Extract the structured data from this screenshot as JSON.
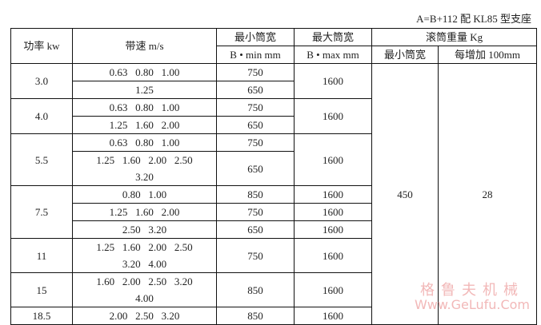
{
  "note": "A=B+112 配 KL85 型支座",
  "header": {
    "power": "功率 kw",
    "speed": "带速 m/s",
    "min_width": "最小筒宽",
    "min_width_unit": "B • min mm",
    "max_width": "最大筒宽",
    "max_width_unit": "B • max mm",
    "weight": "滚筒重量 Kg",
    "weight_min": "最小筒宽",
    "weight_per100": "每增加 100mm"
  },
  "weight_values": {
    "min": "450",
    "per100": "28"
  },
  "groups": [
    {
      "power": "3.0",
      "max": "1600",
      "rows": [
        {
          "speeds": [
            "0.63   0.80   1.00"
          ],
          "min": "750"
        },
        {
          "speeds": [
            "1.25"
          ],
          "min": "650"
        }
      ]
    },
    {
      "power": "4.0",
      "max": "1600",
      "rows": [
        {
          "speeds": [
            "0.63   0.80   1.00"
          ],
          "min": "750"
        },
        {
          "speeds": [
            "1.25   1.60   2.00"
          ],
          "min": "650"
        }
      ]
    },
    {
      "power": "5.5",
      "max": "1600",
      "rows": [
        {
          "speeds": [
            "0.63   0.80   1.00"
          ],
          "min": "750"
        },
        {
          "speeds": [
            "1.25   1.60   2.00   2.50",
            "3.20"
          ],
          "min": "650"
        }
      ]
    },
    {
      "power": "7.5",
      "rows": [
        {
          "speeds": [
            "0.80   1.00"
          ],
          "min": "850",
          "max": "1600"
        },
        {
          "speeds": [
            "1.25   1.60   2.00"
          ],
          "min": "750",
          "max": "1600"
        },
        {
          "speeds": [
            "2.50   3.20"
          ],
          "min": "650",
          "max": "1600"
        }
      ]
    },
    {
      "power": "11",
      "max": "1600",
      "rows": [
        {
          "speeds": [
            "1.25   1.60   2.00   2.50",
            "3.20   4.00"
          ],
          "min": "750"
        }
      ]
    },
    {
      "power": "15",
      "max": "1600",
      "rows": [
        {
          "speeds": [
            "1.60   2.00   2.50   3.20",
            "4.00"
          ],
          "min": "850"
        }
      ]
    },
    {
      "power": "18.5",
      "max": "1600",
      "rows": [
        {
          "speeds": [
            "2.00   2.50   3.20"
          ],
          "min": "850"
        }
      ]
    }
  ],
  "watermark": {
    "cn": "格鲁夫机械",
    "en": "Www.GeLufu.Com"
  }
}
